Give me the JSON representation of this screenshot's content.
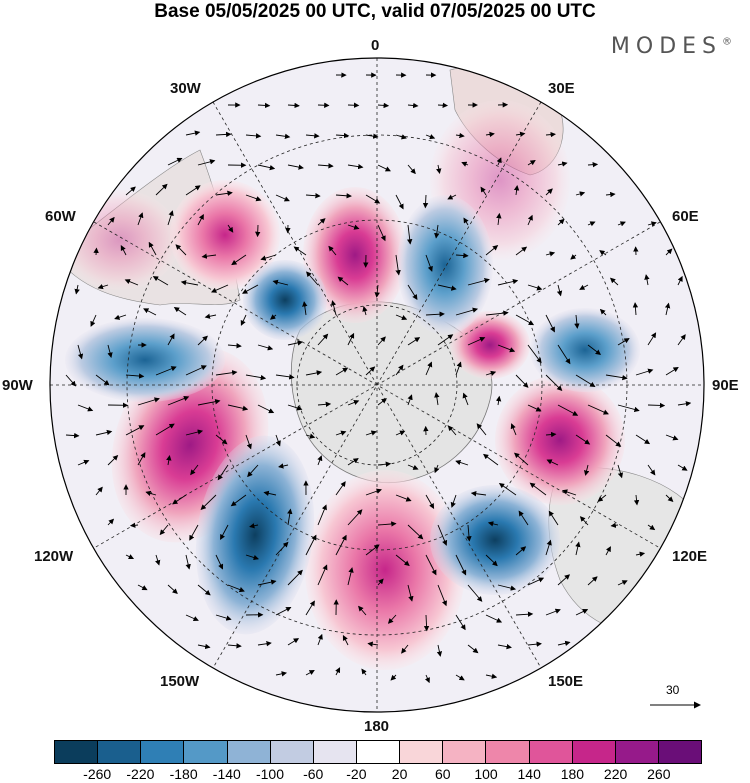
{
  "title": "Base 05/05/2025 00 UTC, valid 07/05/2025 00 UTC",
  "brand": "MODES",
  "brand_mark": "®",
  "longitude_labels": {
    "top": "0",
    "bottom": "180",
    "left": "90W",
    "right": "90E",
    "nw1": "30W",
    "nw2": "60W",
    "ne1": "30E",
    "ne2": "60E",
    "sw1": "120W",
    "sw2": "150W",
    "se1": "120E",
    "se2": "150E"
  },
  "reference_vector": "30",
  "colorbar": {
    "colors": [
      "#0b3d5c",
      "#1a5f8e",
      "#2f7fb5",
      "#5499c7",
      "#8fb3d6",
      "#c2cce2",
      "#e6e4f0",
      "#ffffff",
      "#f9d6d9",
      "#f5b3c3",
      "#ee86aa",
      "#e0559a",
      "#c6268a",
      "#961a8a",
      "#6a0e78"
    ],
    "labels": [
      "-260",
      "-220",
      "-180",
      "-140",
      "-100",
      "-60",
      "-20",
      "20",
      "60",
      "100",
      "140",
      "180",
      "220",
      "260"
    ]
  },
  "colors": {
    "negative_strong": "#1a5f8e",
    "positive_strong": "#c6268a",
    "land": "#e4e4e4"
  }
}
